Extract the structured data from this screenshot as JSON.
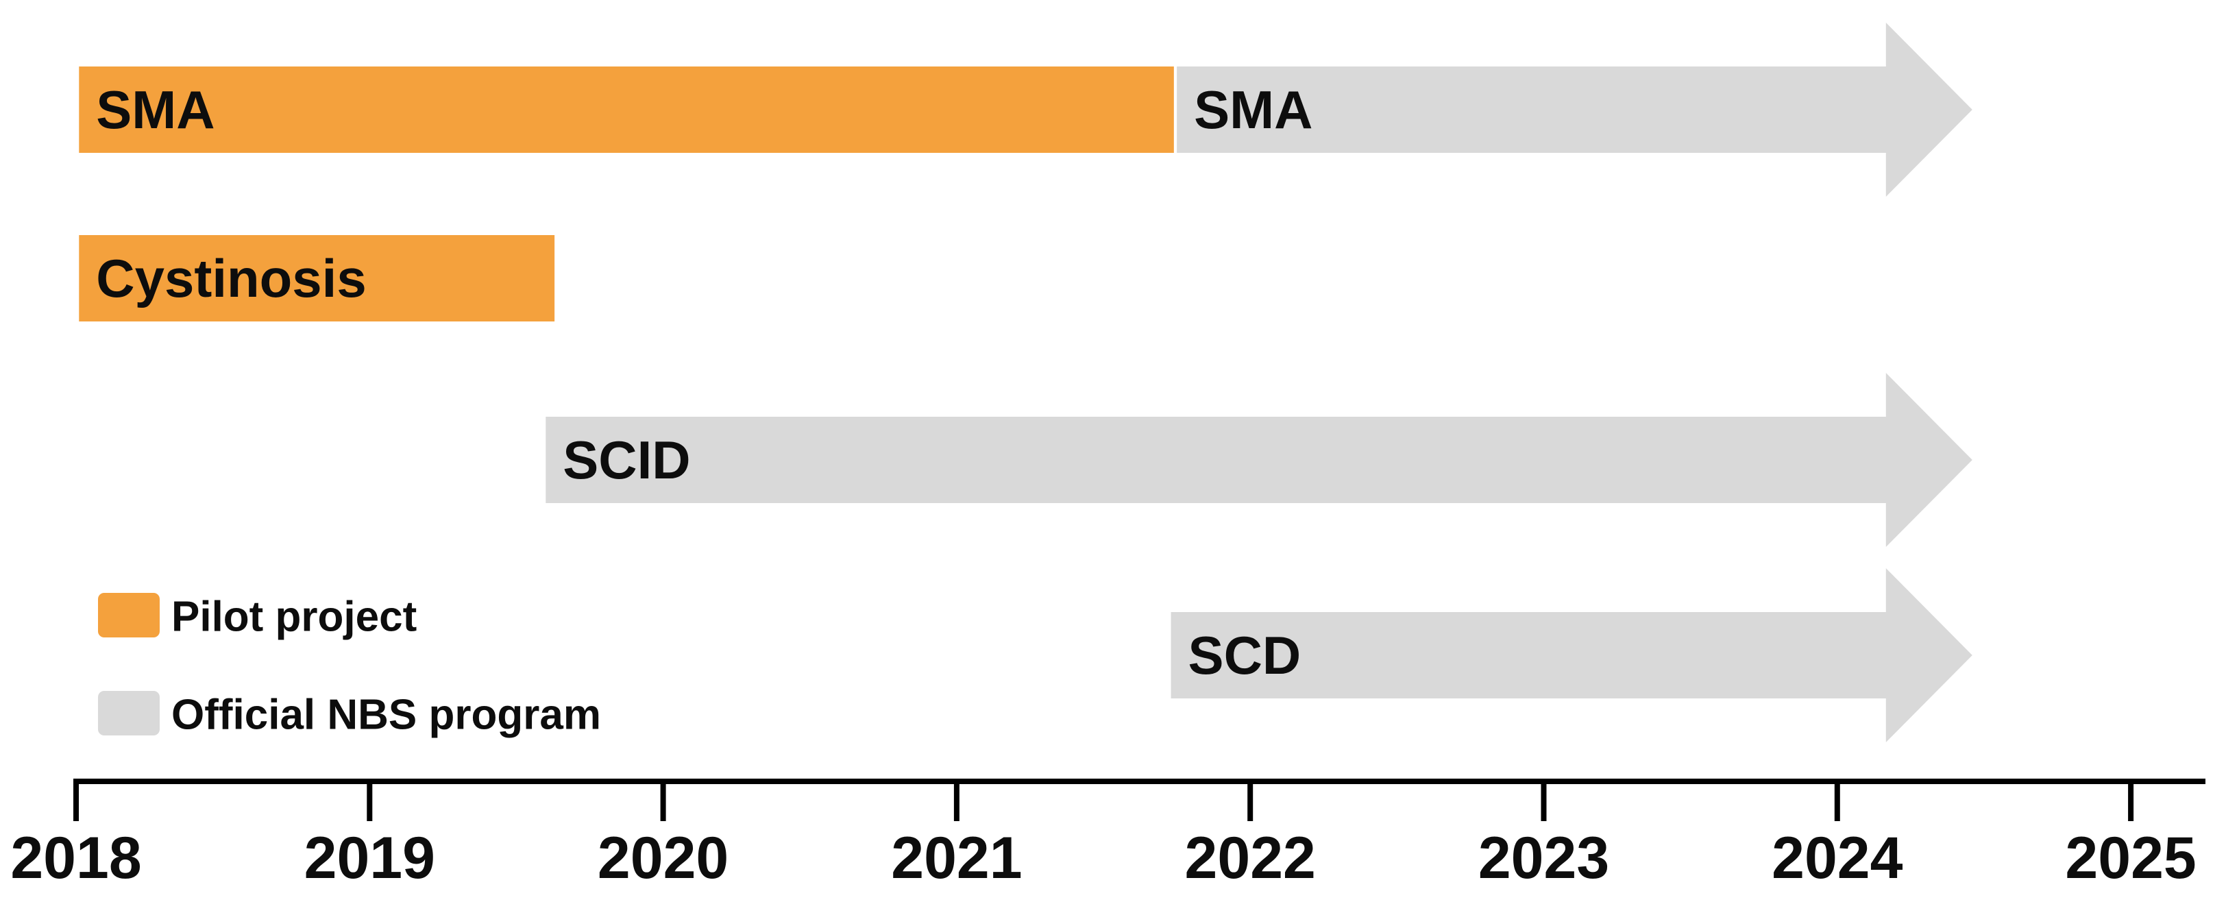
{
  "figure": {
    "background": "#FFFFFF"
  },
  "colors": {
    "pilot_project": "#F4A13D",
    "official_nbs_program": "#D9D9D9",
    "label_text": "#0D0D0D",
    "axis": "#000000"
  },
  "legend": {
    "items": [
      {
        "key": "pilot_project",
        "label": "Pilot project"
      },
      {
        "key": "official_nbs_program",
        "label": "Official NBS program"
      }
    ]
  },
  "chart_data": {
    "type": "timeline",
    "title": "",
    "xlabel": "",
    "x_axis": {
      "min": 2018,
      "max": 2025,
      "ticks": [
        2018,
        2019,
        2020,
        2021,
        2022,
        2023,
        2024,
        2025
      ]
    },
    "rows": [
      {
        "name": "SMA",
        "segments": [
          {
            "label": "SMA",
            "category": "Pilot project",
            "start": 2018.01,
            "end": 2021.74,
            "shape": "rect"
          },
          {
            "label": "SMA",
            "category": "Official NBS program",
            "start": 2021.75,
            "end": 2024.46,
            "shape": "arrow"
          }
        ]
      },
      {
        "name": "Cystinosis",
        "segments": [
          {
            "label": "Cystinosis",
            "category": "Pilot project",
            "start": 2018.01,
            "end": 2019.63,
            "shape": "rect"
          }
        ]
      },
      {
        "name": "SCID",
        "segments": [
          {
            "label": "SCID",
            "category": "Official NBS program",
            "start": 2019.6,
            "end": 2024.46,
            "shape": "arrow"
          }
        ]
      },
      {
        "name": "SCD",
        "segments": [
          {
            "label": "SCD",
            "category": "Official NBS program",
            "start": 2021.73,
            "end": 2024.46,
            "shape": "arrow"
          }
        ]
      }
    ]
  }
}
